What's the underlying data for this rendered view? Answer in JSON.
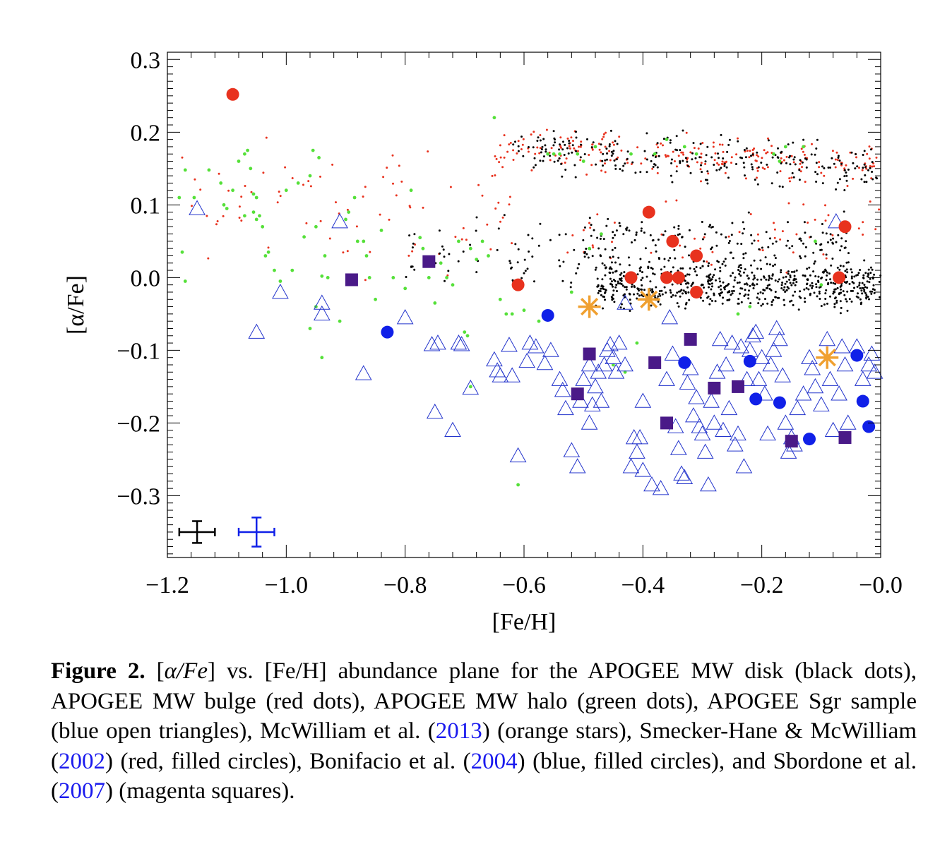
{
  "chart_data": {
    "type": "scatter",
    "xlabel": "[Fe/H]",
    "ylabel": "[α/Fe]",
    "xlim": [
      -1.2,
      0.0
    ],
    "ylim": [
      -0.385,
      0.31
    ],
    "x_ticks": [
      "−1.2",
      "−1.0",
      "−0.8",
      "−0.6",
      "−0.4",
      "−0.2",
      "−0.0"
    ],
    "x_tick_values": [
      -1.2,
      -1.0,
      -0.8,
      -0.6,
      -0.4,
      -0.2,
      0.0
    ],
    "y_ticks": [
      "0.3",
      "0.2",
      "0.1",
      "0.0",
      "−0.1",
      "−0.2",
      "−0.3"
    ],
    "y_tick_values": [
      0.3,
      0.2,
      0.1,
      0.0,
      -0.1,
      -0.2,
      -0.3
    ],
    "grid": false,
    "legend": "none (described in caption)",
    "series": [
      {
        "name": "APOGEE MW disk",
        "marker": "dot",
        "color": "#000000",
        "clusters": [
          {
            "x_range": [
              -0.62,
              0.0
            ],
            "y_center": 0.175,
            "y_spread": 0.045,
            "count": 260,
            "slope": -0.04
          },
          {
            "x_range": [
              -0.48,
              0.0
            ],
            "y_center": -0.01,
            "y_spread": 0.05,
            "count": 640,
            "slope": 0.0
          },
          {
            "x_range": [
              -0.8,
              -0.45
            ],
            "y_center": 0.03,
            "y_spread": 0.07,
            "count": 70,
            "slope": 0.0
          },
          {
            "x_range": [
              -0.5,
              -0.05
            ],
            "y_center": 0.05,
            "y_spread": 0.05,
            "count": 160,
            "slope": 0.0
          }
        ]
      },
      {
        "name": "APOGEE MW bulge",
        "marker": "dot",
        "color": "#e8321e",
        "clusters": [
          {
            "x_range": [
              -0.65,
              0.0
            ],
            "y_center": 0.18,
            "y_spread": 0.04,
            "count": 230,
            "slope": -0.04
          },
          {
            "x_range": [
              -1.18,
              -0.6
            ],
            "y_center": 0.1,
            "y_spread": 0.12,
            "count": 80,
            "slope": 0.0
          },
          {
            "x_range": [
              -0.55,
              0.0
            ],
            "y_center": 0.06,
            "y_spread": 0.07,
            "count": 60,
            "slope": 0.0
          }
        ]
      },
      {
        "name": "APOGEE MW halo",
        "marker": "dot",
        "color": "#55e039",
        "points": [
          [
            -1.18,
            0.11
          ],
          [
            -1.17,
            0.148
          ],
          [
            -1.175,
            0.035
          ],
          [
            -1.17,
            -0.005
          ],
          [
            -1.155,
            0.11
          ],
          [
            -1.13,
            0.148
          ],
          [
            -1.11,
            0.13
          ],
          [
            -1.105,
            0.1
          ],
          [
            -1.1,
            0.095
          ],
          [
            -1.09,
            0.12
          ],
          [
            -1.08,
            0.16
          ],
          [
            -1.07,
            0.17
          ],
          [
            -1.065,
            0.175
          ],
          [
            -1.06,
            0.15
          ],
          [
            -1.07,
            0.085
          ],
          [
            -1.055,
            0.09
          ],
          [
            -1.05,
            0.08
          ],
          [
            -1.045,
            0.085
          ],
          [
            -1.05,
            0.11
          ],
          [
            -1.055,
            0.115
          ],
          [
            -1.04,
            0.07
          ],
          [
            -1.035,
            0.03
          ],
          [
            -1.03,
            0.035
          ],
          [
            -1.02,
            0.01
          ],
          [
            -1.01,
            -0.005
          ],
          [
            -1.0,
            0.12
          ],
          [
            -0.99,
            0.01
          ],
          [
            -0.98,
            0.13
          ],
          [
            -0.97,
            0.056
          ],
          [
            -0.96,
            0.14
          ],
          [
            -0.955,
            0.175
          ],
          [
            -0.945,
            0.165
          ],
          [
            -0.95,
            0.07
          ],
          [
            -0.94,
            0.002
          ],
          [
            -0.935,
            0.03
          ],
          [
            -0.93,
            0.0
          ],
          [
            -0.96,
            -0.07
          ],
          [
            -0.95,
            -0.04
          ],
          [
            -0.94,
            -0.11
          ],
          [
            -0.91,
            -0.06
          ],
          [
            -0.9,
            0.08
          ],
          [
            -0.895,
            0.09
          ],
          [
            -0.885,
            0.11
          ],
          [
            -0.88,
            0.05
          ],
          [
            -0.87,
            0.05
          ],
          [
            -0.865,
            0.03
          ],
          [
            -0.86,
            0.0
          ],
          [
            -0.85,
            -0.03
          ],
          [
            -0.84,
            0.065
          ],
          [
            -0.82,
            0.0
          ],
          [
            -0.8,
            -0.015
          ],
          [
            -0.79,
            0.12
          ],
          [
            -0.775,
            0.055
          ],
          [
            -0.77,
            0.04
          ],
          [
            -0.76,
            0.0
          ],
          [
            -0.75,
            -0.035
          ],
          [
            -0.74,
            0.02
          ],
          [
            -0.73,
            0.0
          ],
          [
            -0.72,
            -0.01
          ],
          [
            -0.71,
            0.05
          ],
          [
            -0.7,
            -0.075
          ],
          [
            -0.695,
            -0.08
          ],
          [
            -0.69,
            0.04
          ],
          [
            -0.68,
            0.025
          ],
          [
            -0.67,
            0.05
          ],
          [
            -0.66,
            0.03
          ],
          [
            -0.65,
            0.22
          ],
          [
            -0.64,
            -0.03
          ],
          [
            -0.63,
            -0.05
          ],
          [
            -0.62,
            -0.05
          ],
          [
            -0.61,
            -0.01
          ],
          [
            -0.6,
            -0.045
          ],
          [
            -0.575,
            -0.06
          ],
          [
            -0.56,
            0.17
          ],
          [
            -0.55,
            0.17
          ],
          [
            -0.54,
            0.17
          ],
          [
            -0.52,
            -0.02
          ],
          [
            -0.51,
            0.17
          ],
          [
            -0.5,
            0.16
          ],
          [
            -0.49,
            0.04
          ],
          [
            -0.48,
            0.18
          ],
          [
            -0.47,
            0.06
          ],
          [
            -0.45,
            -0.12
          ],
          [
            -0.43,
            -0.13
          ],
          [
            -0.42,
            0.17
          ],
          [
            -0.41,
            -0.09
          ],
          [
            -0.38,
            0.17
          ],
          [
            -0.36,
            0.19
          ],
          [
            -0.33,
            0.18
          ],
          [
            -0.31,
            0.17
          ],
          [
            -0.24,
            -0.05
          ],
          [
            -0.22,
            -0.04
          ],
          [
            -0.18,
            0.17
          ],
          [
            -0.17,
            0.16
          ],
          [
            -0.16,
            0.18
          ],
          [
            -0.13,
            0.18
          ],
          [
            -0.11,
            0.05
          ],
          [
            -0.1,
            -0.01
          ],
          [
            -0.69,
            -0.15
          ],
          [
            -0.61,
            -0.285
          ]
        ]
      },
      {
        "name": "APOGEE Sgr sample",
        "marker": "open-triangle",
        "color": "#2233cc",
        "points": [
          [
            -1.15,
            0.095
          ],
          [
            -1.05,
            -0.075
          ],
          [
            -1.01,
            -0.02
          ],
          [
            -0.94,
            -0.035
          ],
          [
            -0.94,
            -0.05
          ],
          [
            -0.91,
            0.077
          ],
          [
            -0.87,
            -0.132
          ],
          [
            -0.8,
            -0.055
          ],
          [
            -0.755,
            -0.092
          ],
          [
            -0.745,
            -0.09
          ],
          [
            -0.75,
            -0.185
          ],
          [
            -0.72,
            -0.21
          ],
          [
            -0.71,
            -0.09
          ],
          [
            -0.705,
            -0.092
          ],
          [
            -0.69,
            -0.152
          ],
          [
            -0.65,
            -0.113
          ],
          [
            -0.645,
            -0.128
          ],
          [
            -0.64,
            -0.135
          ],
          [
            -0.625,
            -0.093
          ],
          [
            -0.62,
            -0.135
          ],
          [
            -0.61,
            -0.245
          ],
          [
            -0.595,
            -0.115
          ],
          [
            -0.59,
            -0.09
          ],
          [
            -0.58,
            -0.095
          ],
          [
            -0.565,
            -0.118
          ],
          [
            -0.555,
            -0.1
          ],
          [
            -0.54,
            -0.14
          ],
          [
            -0.535,
            -0.155
          ],
          [
            -0.53,
            -0.18
          ],
          [
            -0.52,
            -0.238
          ],
          [
            -0.51,
            -0.26
          ],
          [
            -0.505,
            -0.17
          ],
          [
            -0.5,
            -0.14
          ],
          [
            -0.49,
            -0.12
          ],
          [
            -0.49,
            -0.2
          ],
          [
            -0.485,
            -0.175
          ],
          [
            -0.48,
            -0.15
          ],
          [
            -0.475,
            -0.13
          ],
          [
            -0.47,
            -0.17
          ],
          [
            -0.465,
            -0.12
          ],
          [
            -0.46,
            -0.1
          ],
          [
            -0.455,
            -0.092
          ],
          [
            -0.45,
            -0.11
          ],
          [
            -0.445,
            -0.13
          ],
          [
            -0.44,
            -0.09
          ],
          [
            -0.43,
            -0.035
          ],
          [
            -0.43,
            -0.12
          ],
          [
            -0.42,
            -0.26
          ],
          [
            -0.41,
            -0.24
          ],
          [
            -0.4,
            -0.265
          ],
          [
            -0.415,
            -0.22
          ],
          [
            -0.405,
            -0.22
          ],
          [
            -0.4,
            -0.17
          ],
          [
            -0.385,
            -0.285
          ],
          [
            -0.37,
            -0.29
          ],
          [
            -0.36,
            -0.14
          ],
          [
            -0.355,
            -0.055
          ],
          [
            -0.35,
            -0.105
          ],
          [
            -0.345,
            -0.205
          ],
          [
            -0.34,
            -0.235
          ],
          [
            -0.335,
            -0.27
          ],
          [
            -0.33,
            -0.275
          ],
          [
            -0.325,
            -0.145
          ],
          [
            -0.32,
            -0.125
          ],
          [
            -0.315,
            -0.19
          ],
          [
            -0.31,
            -0.165
          ],
          [
            -0.305,
            -0.205
          ],
          [
            -0.3,
            -0.215
          ],
          [
            -0.295,
            -0.24
          ],
          [
            -0.29,
            -0.285
          ],
          [
            -0.285,
            -0.17
          ],
          [
            -0.28,
            -0.2
          ],
          [
            -0.275,
            -0.13
          ],
          [
            -0.27,
            -0.085
          ],
          [
            -0.265,
            -0.21
          ],
          [
            -0.26,
            -0.12
          ],
          [
            -0.255,
            -0.18
          ],
          [
            -0.25,
            -0.09
          ],
          [
            -0.245,
            -0.23
          ],
          [
            -0.24,
            -0.215
          ],
          [
            -0.235,
            -0.095
          ],
          [
            -0.23,
            -0.26
          ],
          [
            -0.225,
            -0.14
          ],
          [
            -0.22,
            -0.1
          ],
          [
            -0.215,
            -0.08
          ],
          [
            -0.21,
            -0.075
          ],
          [
            -0.205,
            -0.14
          ],
          [
            -0.2,
            -0.11
          ],
          [
            -0.195,
            -0.16
          ],
          [
            -0.19,
            -0.215
          ],
          [
            -0.185,
            -0.12
          ],
          [
            -0.18,
            -0.1
          ],
          [
            -0.175,
            -0.07
          ],
          [
            -0.17,
            -0.085
          ],
          [
            -0.165,
            -0.135
          ],
          [
            -0.16,
            -0.2
          ],
          [
            -0.155,
            -0.24
          ],
          [
            -0.15,
            -0.22
          ],
          [
            -0.145,
            -0.23
          ],
          [
            -0.14,
            -0.18
          ],
          [
            -0.13,
            -0.16
          ],
          [
            -0.12,
            -0.11
          ],
          [
            -0.115,
            -0.125
          ],
          [
            -0.11,
            -0.15
          ],
          [
            -0.1,
            -0.175
          ],
          [
            -0.09,
            -0.085
          ],
          [
            -0.085,
            -0.14
          ],
          [
            -0.08,
            -0.21
          ],
          [
            -0.075,
            0.077
          ],
          [
            -0.07,
            -0.16
          ],
          [
            -0.065,
            -0.095
          ],
          [
            -0.06,
            -0.12
          ],
          [
            -0.055,
            -0.2
          ],
          [
            -0.04,
            -0.095
          ],
          [
            -0.03,
            -0.14
          ],
          [
            -0.02,
            -0.12
          ],
          [
            -0.015,
            -0.105
          ],
          [
            -0.01,
            -0.13
          ]
        ]
      },
      {
        "name": "McWilliam et al. (2013)",
        "marker": "asterisk",
        "color": "#f0a030",
        "points": [
          [
            -0.49,
            -0.04
          ],
          [
            -0.39,
            -0.03
          ],
          [
            -0.09,
            -0.11
          ]
        ]
      },
      {
        "name": "Smecker-Hane & McWilliam (2002)",
        "marker": "filled-circle",
        "color": "#e8321e",
        "points": [
          [
            -1.09,
            0.252
          ],
          [
            -0.61,
            -0.01
          ],
          [
            -0.42,
            0.0
          ],
          [
            -0.39,
            0.09
          ],
          [
            -0.36,
            0.0
          ],
          [
            -0.35,
            0.05
          ],
          [
            -0.34,
            0.0
          ],
          [
            -0.31,
            0.03
          ],
          [
            -0.31,
            -0.02
          ],
          [
            -0.07,
            0.0
          ],
          [
            -0.06,
            0.07
          ]
        ]
      },
      {
        "name": "Bonifacio et al. (2004)",
        "marker": "filled-circle",
        "color": "#1020e8",
        "points": [
          [
            -0.83,
            -0.075
          ],
          [
            -0.56,
            -0.052
          ],
          [
            -0.33,
            -0.117
          ],
          [
            -0.22,
            -0.115
          ],
          [
            -0.21,
            -0.167
          ],
          [
            -0.17,
            -0.172
          ],
          [
            -0.12,
            -0.222
          ],
          [
            -0.04,
            -0.107
          ],
          [
            -0.03,
            -0.17
          ],
          [
            -0.02,
            -0.205
          ]
        ]
      },
      {
        "name": "Sbordone et al. (2007)",
        "marker": "filled-square",
        "color": "#4a1a88",
        "points": [
          [
            -0.89,
            -0.003
          ],
          [
            -0.76,
            0.022
          ],
          [
            -0.51,
            -0.16
          ],
          [
            -0.49,
            -0.105
          ],
          [
            -0.38,
            -0.117
          ],
          [
            -0.36,
            -0.2
          ],
          [
            -0.32,
            -0.085
          ],
          [
            -0.28,
            -0.152
          ],
          [
            -0.24,
            -0.15
          ],
          [
            -0.15,
            -0.225
          ],
          [
            -0.06,
            -0.22
          ]
        ]
      }
    ],
    "error_bars": [
      {
        "color": "#000000",
        "x": -1.15,
        "y": -0.35,
        "xerr": 0.03,
        "yerr": 0.015
      },
      {
        "color": "#1020e8",
        "x": -1.05,
        "y": -0.35,
        "xerr": 0.03,
        "yerr": 0.02
      }
    ]
  },
  "caption": {
    "label": "Figure 2.",
    "p1": " [",
    "alpha_fe": "α/Fe",
    "p2": "] vs. [Fe/H] abundance plane for the APOGEE MW disk (black dots), APOGEE MW bulge (red dots), APOGEE MW halo (green dots), APOGEE Sgr sample (blue open triangles), McWilliam et al. (",
    "ref1": "2013",
    "p3": ") (orange stars), Smecker-Hane & McWilliam (",
    "ref2": "2002",
    "p4": ") (red, filled circles), Bonifacio et al. (",
    "ref3": "2004",
    "p5": ") (blue, filled circles), and Sbordone et al. (",
    "ref4": "2007",
    "p6": ") (magenta squares)."
  }
}
